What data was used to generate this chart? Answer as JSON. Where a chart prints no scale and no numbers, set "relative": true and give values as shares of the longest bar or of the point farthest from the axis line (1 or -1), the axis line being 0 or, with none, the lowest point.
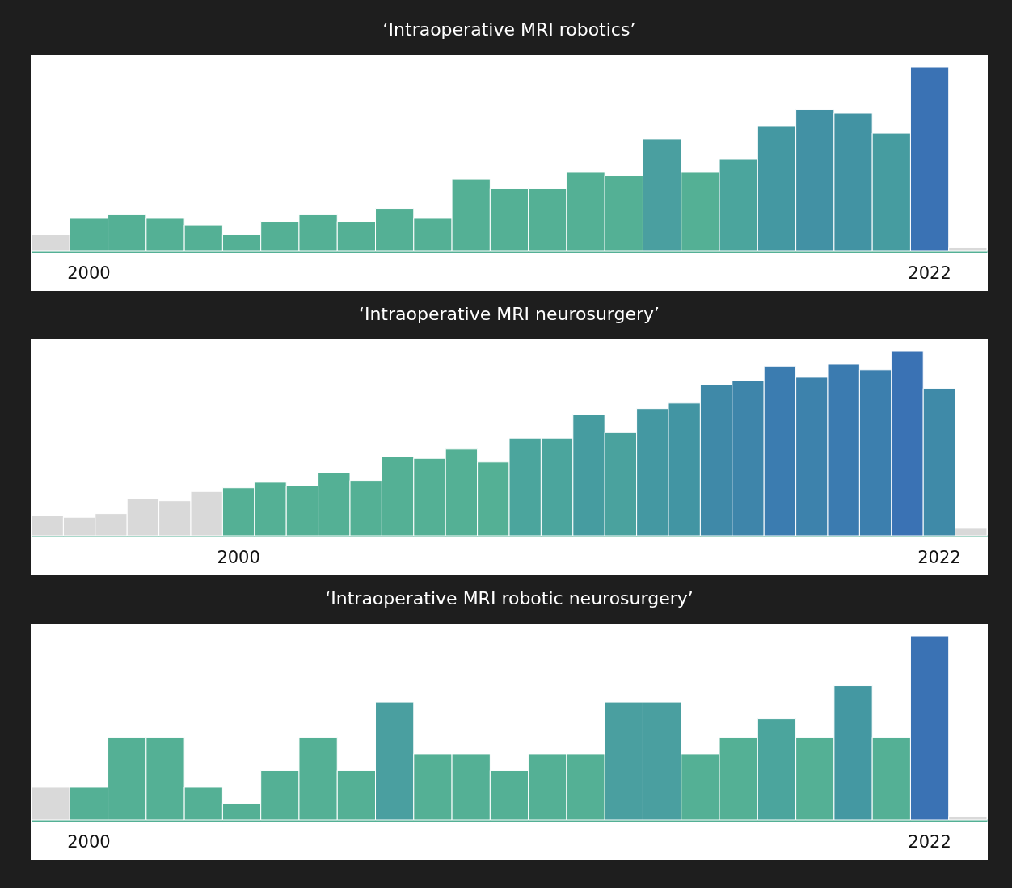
{
  "chart_data": [
    {
      "type": "bar",
      "title": "‘Intraoperative MRI robotics’",
      "relative": true,
      "categories": [
        null,
        "2000",
        null,
        null,
        null,
        null,
        null,
        null,
        null,
        null,
        null,
        null,
        null,
        null,
        null,
        null,
        null,
        null,
        null,
        null,
        null,
        null,
        null,
        "2022",
        null
      ],
      "values": [
        0.09,
        0.18,
        0.2,
        0.18,
        0.14,
        0.09,
        0.16,
        0.2,
        0.16,
        0.23,
        0.18,
        0.39,
        0.34,
        0.34,
        0.43,
        0.41,
        0.61,
        0.43,
        0.5,
        0.68,
        0.77,
        0.75,
        0.64,
        1,
        0.02
      ],
      "colors": [
        "#d9d9d9",
        "#54b095",
        "#54b095",
        "#54b095",
        "#54b095",
        "#54b095",
        "#54b095",
        "#54b095",
        "#54b095",
        "#54b095",
        "#54b095",
        "#54b095",
        "#54b095",
        "#54b095",
        "#54b095",
        "#54b095",
        "#4a9fa0",
        "#54b095",
        "#4ba59d",
        "#4498a2",
        "#4291a4",
        "#4293a3",
        "#469ca0",
        "#3a72b4",
        "#d9d9d9"
      ]
    },
    {
      "type": "bar",
      "title": "‘Intraoperative MRI neurosurgery’",
      "relative": true,
      "categories": [
        null,
        null,
        null,
        null,
        null,
        null,
        "2000",
        null,
        null,
        null,
        null,
        null,
        null,
        null,
        null,
        null,
        null,
        null,
        null,
        null,
        null,
        null,
        null,
        null,
        null,
        null,
        null,
        null,
        "2022",
        null
      ],
      "values": [
        0.11,
        0.1,
        0.12,
        0.2,
        0.19,
        0.24,
        0.26,
        0.29,
        0.27,
        0.34,
        0.3,
        0.43,
        0.42,
        0.47,
        0.4,
        0.53,
        0.53,
        0.66,
        0.56,
        0.69,
        0.72,
        0.82,
        0.84,
        0.92,
        0.86,
        0.93,
        0.9,
        1,
        0.8,
        0.04
      ],
      "colors": [
        "#d9d9d9",
        "#d9d9d9",
        "#d9d9d9",
        "#d9d9d9",
        "#d9d9d9",
        "#d9d9d9",
        "#54b095",
        "#54b095",
        "#54b095",
        "#54b095",
        "#54b095",
        "#54b095",
        "#54b095",
        "#54b095",
        "#54b095",
        "#4ba59d",
        "#4ba59d",
        "#469ca0",
        "#4aa29e",
        "#4498a2",
        "#4295a3",
        "#3f89a8",
        "#3e85aa",
        "#3b7cb0",
        "#3d82ac",
        "#3b7bb0",
        "#3c7fae",
        "#3a72b4",
        "#3f8aa8",
        "#d9d9d9"
      ]
    },
    {
      "type": "bar",
      "title": "‘Intraoperative MRI robotic neurosurgery’",
      "relative": true,
      "categories": [
        null,
        "2000",
        null,
        null,
        null,
        null,
        null,
        null,
        null,
        null,
        null,
        null,
        null,
        null,
        null,
        null,
        null,
        null,
        null,
        null,
        null,
        null,
        null,
        "2022",
        null
      ],
      "values": [
        0.18,
        0.18,
        0.45,
        0.45,
        0.18,
        0.09,
        0.27,
        0.45,
        0.27,
        0.64,
        0.36,
        0.36,
        0.27,
        0.36,
        0.36,
        0.64,
        0.64,
        0.36,
        0.45,
        0.55,
        0.45,
        0.73,
        0.45,
        1,
        0.02
      ],
      "colors": [
        "#d9d9d9",
        "#54b095",
        "#54b095",
        "#54b095",
        "#54b095",
        "#54b095",
        "#54b095",
        "#54b095",
        "#54b095",
        "#4a9fa0",
        "#54b095",
        "#54b095",
        "#54b095",
        "#54b095",
        "#54b095",
        "#4a9fa0",
        "#4a9fa0",
        "#54b095",
        "#54b095",
        "#4ba59d",
        "#54b095",
        "#4498a2",
        "#54b095",
        "#3a72b4",
        "#d9d9d9"
      ]
    }
  ]
}
